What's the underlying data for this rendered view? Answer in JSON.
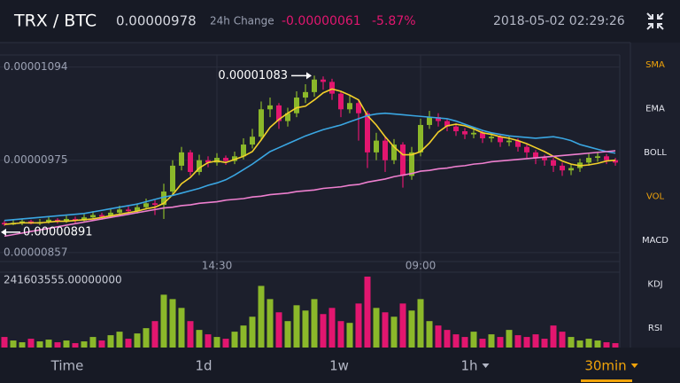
{
  "header": {
    "pair": "TRX / BTC",
    "price": "0.00000978",
    "change_label": "24h Change",
    "change": "-0.00000061",
    "change_pct": "-5.87%",
    "time": "2018-05-02 02:29:26"
  },
  "side_menu": [
    "SMA",
    "EMA",
    "BOLL",
    "VOL",
    "MACD",
    "KDJ",
    "RSI"
  ],
  "side_menu_active": [
    "SMA",
    "VOL"
  ],
  "tabs": [
    "Time",
    "1d",
    "1w",
    "1h",
    "30min"
  ],
  "tabs_dropdown": [
    "1h",
    "30min"
  ],
  "tab_active": "30min",
  "chart_data": {
    "type": "candlestick",
    "up_color": "#8bb82a",
    "down_color": "#e2166f",
    "ylim": [
      8.49e-06,
      1.106e-05
    ],
    "yticks": [
      1.094e-05,
      9.75e-06,
      8.57e-06
    ],
    "grid": true,
    "categories": [
      null,
      null,
      null,
      null,
      null,
      null,
      null,
      null,
      null,
      null,
      null,
      null,
      null,
      null,
      null,
      null,
      null,
      null,
      null,
      null,
      null,
      null,
      null,
      null,
      "14:30",
      null,
      null,
      null,
      null,
      null,
      null,
      null,
      null,
      null,
      null,
      null,
      null,
      null,
      null,
      null,
      null,
      null,
      null,
      null,
      null,
      null,
      null,
      "09:00",
      null,
      null,
      null,
      null,
      null,
      null,
      null,
      null,
      null,
      null,
      null,
      null,
      null,
      null,
      null,
      null,
      null,
      null,
      null,
      null,
      null,
      null
    ],
    "candles": [
      [
        8.95e-06,
        8.98e-06,
        8.91e-06,
        8.93e-06
      ],
      [
        8.93e-06,
        8.99e-06,
        8.92e-06,
        8.95e-06
      ],
      [
        8.95e-06,
        9e-06,
        8.92e-06,
        8.97e-06
      ],
      [
        8.97e-06,
        8.99e-06,
        8.93e-06,
        8.94e-06
      ],
      [
        8.94e-06,
        9e-06,
        8.92e-06,
        8.96e-06
      ],
      [
        8.96e-06,
        9.03e-06,
        8.94e-06,
        8.99e-06
      ],
      [
        8.99e-06,
        9.01e-06,
        8.94e-06,
        8.97e-06
      ],
      [
        8.97e-06,
        9.04e-06,
        8.95e-06,
        9e-06
      ],
      [
        9e-06,
        9.03e-06,
        8.95e-06,
        8.98e-06
      ],
      [
        8.98e-06,
        9.06e-06,
        8.96e-06,
        9.02e-06
      ],
      [
        9.02e-06,
        9.1e-06,
        9e-06,
        9.05e-06
      ],
      [
        9.05e-06,
        9.08e-06,
        8.99e-06,
        9.03e-06
      ],
      [
        9.03e-06,
        9.13e-06,
        9.01e-06,
        9.08e-06
      ],
      [
        9.08e-06,
        9.17e-06,
        9.05e-06,
        9.12e-06
      ],
      [
        9.12e-06,
        9.16e-06,
        9.06e-06,
        9.1e-06
      ],
      [
        9.1e-06,
        9.2e-06,
        9.07e-06,
        9.15e-06
      ],
      [
        9.15e-06,
        9.26e-06,
        9.12e-06,
        9.2e-06
      ],
      [
        9.2e-06,
        9.24e-06,
        9.05e-06,
        9.18e-06
      ],
      [
        9.18e-06,
        9.45e-06,
        9e-06,
        9.35e-06
      ],
      [
        9.35e-06,
        9.75e-06,
        9.3e-06,
        9.68e-06
      ],
      [
        9.68e-06,
        9.92e-06,
        9.62e-06,
        9.85e-06
      ],
      [
        9.85e-06,
        9.88e-06,
        9.55e-06,
        9.6e-06
      ],
      [
        9.6e-06,
        9.82e-06,
        9.56e-06,
        9.75e-06
      ],
      [
        9.75e-06,
        9.8e-06,
        9.66e-06,
        9.72e-06
      ],
      [
        9.72e-06,
        9.84e-06,
        9.68e-06,
        9.78e-06
      ],
      [
        9.78e-06,
        9.81e-06,
        9.69e-06,
        9.74e-06
      ],
      [
        9.74e-06,
        9.86e-06,
        9.7e-06,
        9.8e-06
      ],
      [
        9.8e-06,
        1.003e-05,
        9.76e-06,
        9.95e-06
      ],
      [
        9.95e-06,
        1.015e-05,
        9.9e-06,
        1.005e-05
      ],
      [
        1.005e-05,
        1.05e-05,
        1e-05,
        1.04e-05
      ],
      [
        1.04e-05,
        1.055e-05,
        1.03e-05,
        1.045e-05
      ],
      [
        1.045e-05,
        1.048e-05,
        1.015e-05,
        1.025e-05
      ],
      [
        1.025e-05,
        1.042e-05,
        1.018e-05,
        1.035e-05
      ],
      [
        1.035e-05,
        1.063e-05,
        1.03e-05,
        1.055e-05
      ],
      [
        1.055e-05,
        1.072e-05,
        1.048e-05,
        1.062e-05
      ],
      [
        1.062e-05,
        1.083e-05,
        1.056e-05,
        1.078e-05
      ],
      [
        1.078e-05,
        1.082e-05,
        1.065e-05,
        1.075e-05
      ],
      [
        1.075e-05,
        1.079e-05,
        1.052e-05,
        1.06e-05
      ],
      [
        1.06e-05,
        1.063e-05,
        1.03e-05,
        1.04e-05
      ],
      [
        1.04e-05,
        1.058e-05,
        1.035e-05,
        1.048e-05
      ],
      [
        1.048e-05,
        1.052e-05,
        1e-05,
        1.035e-05
      ],
      [
        1.035e-05,
        1.038e-05,
        9.65e-06,
        9.85e-06
      ],
      [
        9.85e-06,
        1.01e-05,
        9.75e-06,
        1e-05
      ],
      [
        1e-05,
        1.005e-05,
        9.6e-06,
        9.75e-06
      ],
      [
        9.75e-06,
        1.002e-05,
        9.7e-06,
        9.95e-06
      ],
      [
        9.95e-06,
        9.98e-06,
        9.4e-06,
        9.55e-06
      ],
      [
        9.55e-06,
        9.92e-06,
        9.5e-06,
        9.85e-06
      ],
      [
        9.85e-06,
        1.028e-05,
        9.8e-06,
        1.02e-05
      ],
      [
        1.02e-05,
        1.038e-05,
        1.015e-05,
        1.03e-05
      ],
      [
        1.03e-05,
        1.035e-05,
        1.018e-05,
        1.025e-05
      ],
      [
        1.025e-05,
        1.028e-05,
        1.012e-05,
        1.018e-05
      ],
      [
        1.018e-05,
        1.022e-05,
        1.006e-05,
        1.012e-05
      ],
      [
        1.012e-05,
        1.016e-05,
        1.002e-05,
        1.008e-05
      ],
      [
        1.008e-05,
        1.015e-05,
        1.003e-05,
        1.01e-05
      ],
      [
        1.01e-05,
        1.013e-05,
        9.97e-06,
        1.003e-05
      ],
      [
        1.003e-05,
        1.01e-05,
        9.98e-06,
        1.005e-05
      ],
      [
        1.005e-05,
        1.008e-05,
        9.92e-06,
        9.98e-06
      ],
      [
        9.98e-06,
        1.006e-05,
        9.93e-06,
        1e-05
      ],
      [
        1e-05,
        1.003e-05,
        9.86e-06,
        9.92e-06
      ],
      [
        9.92e-06,
        9.95e-06,
        9.78e-06,
        9.85e-06
      ],
      [
        9.85e-06,
        9.88e-06,
        9.7e-06,
        9.78e-06
      ],
      [
        9.78e-06,
        9.82e-06,
        9.68e-06,
        9.75e-06
      ],
      [
        9.75e-06,
        9.78e-06,
        9.6e-06,
        9.68e-06
      ],
      [
        9.68e-06,
        9.72e-06,
        9.55e-06,
        9.62e-06
      ],
      [
        9.62e-06,
        9.7e-06,
        9.56e-06,
        9.65e-06
      ],
      [
        9.65e-06,
        9.77e-06,
        9.6e-06,
        9.72e-06
      ],
      [
        9.72e-06,
        9.83e-06,
        9.68e-06,
        9.78e-06
      ],
      [
        9.78e-06,
        9.85e-06,
        9.73e-06,
        9.8e-06
      ],
      [
        9.8e-06,
        9.83e-06,
        9.7e-06,
        9.75e-06
      ],
      [
        9.75e-06,
        9.78e-06,
        9.68e-06,
        9.72e-06
      ]
    ],
    "sma": [
      {
        "color": "#f3d02a",
        "values": [
          8.93e-06,
          8.94e-06,
          8.95e-06,
          8.95e-06,
          8.95e-06,
          8.96e-06,
          8.97e-06,
          8.97e-06,
          8.98e-06,
          8.99e-06,
          9e-06,
          9.02e-06,
          9.04e-06,
          9.06e-06,
          9.08e-06,
          9.1e-06,
          9.13e-06,
          9.15e-06,
          9.2e-06,
          9.31e-06,
          9.45e-06,
          9.53e-06,
          9.65e-06,
          9.72e-06,
          9.74e-06,
          9.72e-06,
          9.76e-06,
          9.8e-06,
          9.86e-06,
          1.001e-05,
          1.017e-05,
          1.027e-05,
          1.035e-05,
          1.042e-05,
          1.044e-05,
          1.052e-05,
          1.061e-05,
          1.066e-05,
          1.063e-05,
          1.058e-05,
          1.052e-05,
          1.032e-05,
          1.02e-05,
          1.005e-05,
          9.92e-06,
          9.82e-06,
          9.82e-06,
          9.86e-06,
          9.97e-06,
          1.011e-05,
          1.019e-05,
          1.021e-05,
          1.019e-05,
          1.015e-05,
          1.01e-05,
          1.008e-05,
          1.005e-05,
          1.003e-05,
          1e-05,
          9.96e-06,
          9.91e-06,
          9.86e-06,
          9.8e-06,
          9.74e-06,
          9.7e-06,
          9.68e-06,
          9.69e-06,
          9.71e-06,
          9.74e-06,
          9.75e-06
        ]
      },
      {
        "color": "#3aa6e2",
        "values": [
          8.98e-06,
          8.99e-06,
          9e-06,
          9.01e-06,
          9.02e-06,
          9.03e-06,
          9.04e-06,
          9.05e-06,
          9.06e-06,
          9.07e-06,
          9.09e-06,
          9.11e-06,
          9.13e-06,
          9.15e-06,
          9.17e-06,
          9.19e-06,
          9.22e-06,
          9.25e-06,
          9.28e-06,
          9.3e-06,
          9.33e-06,
          9.36e-06,
          9.39e-06,
          9.43e-06,
          9.46e-06,
          9.5e-06,
          9.56e-06,
          9.63e-06,
          9.7e-06,
          9.78e-06,
          9.86e-06,
          9.91e-06,
          9.96e-06,
          1.001e-05,
          1.006e-05,
          1.01e-05,
          1.014e-05,
          1.017e-05,
          1.02e-05,
          1.024e-05,
          1.028e-05,
          1.032e-05,
          1.034e-05,
          1.035e-05,
          1.034e-05,
          1.033e-05,
          1.032e-05,
          1.031e-05,
          1.03e-05,
          1.029e-05,
          1.028e-05,
          1.025e-05,
          1.021e-05,
          1.017e-05,
          1.013e-05,
          1.01e-05,
          1.008e-05,
          1.006e-05,
          1.005e-05,
          1.004e-05,
          1.003e-05,
          1.004e-05,
          1.005e-05,
          1.003e-05,
          1e-05,
          9.95e-06,
          9.92e-06,
          9.89e-06,
          9.86e-06,
          9.84e-06
        ]
      },
      {
        "color": "#ee7fcf",
        "values": [
          8.78e-06,
          8.8e-06,
          8.82e-06,
          8.84e-06,
          8.86e-06,
          8.88e-06,
          8.9e-06,
          8.92e-06,
          8.94e-06,
          8.96e-06,
          8.98e-06,
          9e-06,
          9.02e-06,
          9.04e-06,
          9.06e-06,
          9.08e-06,
          9.1e-06,
          9.12e-06,
          9.14e-06,
          9.15e-06,
          9.17e-06,
          9.18e-06,
          9.2e-06,
          9.21e-06,
          9.22e-06,
          9.24e-06,
          9.25e-06,
          9.26e-06,
          9.28e-06,
          9.29e-06,
          9.31e-06,
          9.32e-06,
          9.33e-06,
          9.35e-06,
          9.36e-06,
          9.37e-06,
          9.39e-06,
          9.4e-06,
          9.41e-06,
          9.43e-06,
          9.44e-06,
          9.47e-06,
          9.49e-06,
          9.51e-06,
          9.54e-06,
          9.56e-06,
          9.58e-06,
          9.61e-06,
          9.62e-06,
          9.64e-06,
          9.65e-06,
          9.67e-06,
          9.68e-06,
          9.7e-06,
          9.71e-06,
          9.73e-06,
          9.74e-06,
          9.75e-06,
          9.76e-06,
          9.77e-06,
          9.78e-06,
          9.79e-06,
          9.8e-06,
          9.81e-06,
          9.82e-06,
          9.83e-06,
          9.84e-06,
          9.85e-06,
          9.86e-06,
          9.87e-06
        ]
      }
    ],
    "volume": [
      36000000,
      24000000,
      18000000,
      30000000,
      21000000,
      27000000,
      18000000,
      24000000,
      15000000,
      21000000,
      36000000,
      24000000,
      42000000,
      54000000,
      30000000,
      48000000,
      66000000,
      90000000,
      180000000,
      165000000,
      135000000,
      90000000,
      60000000,
      45000000,
      36000000,
      30000000,
      54000000,
      75000000,
      105000000,
      210000000,
      165000000,
      120000000,
      90000000,
      144000000,
      126000000,
      165000000,
      114000000,
      135000000,
      90000000,
      84000000,
      150000000,
      241603555,
      135000000,
      120000000,
      105000000,
      150000000,
      126000000,
      165000000,
      90000000,
      75000000,
      60000000,
      45000000,
      36000000,
      54000000,
      30000000,
      45000000,
      36000000,
      60000000,
      42000000,
      36000000,
      45000000,
      30000000,
      75000000,
      54000000,
      36000000,
      24000000,
      30000000,
      24000000,
      18000000,
      15000000
    ],
    "volume_ylim": [
      0,
      241603555
    ],
    "volume_label": "241603555.00000000",
    "annotations": [
      {
        "text": "0.00001083",
        "candle": 35,
        "at": "high"
      },
      {
        "text": "0.00000891",
        "candle": 0,
        "at": "low"
      }
    ]
  }
}
